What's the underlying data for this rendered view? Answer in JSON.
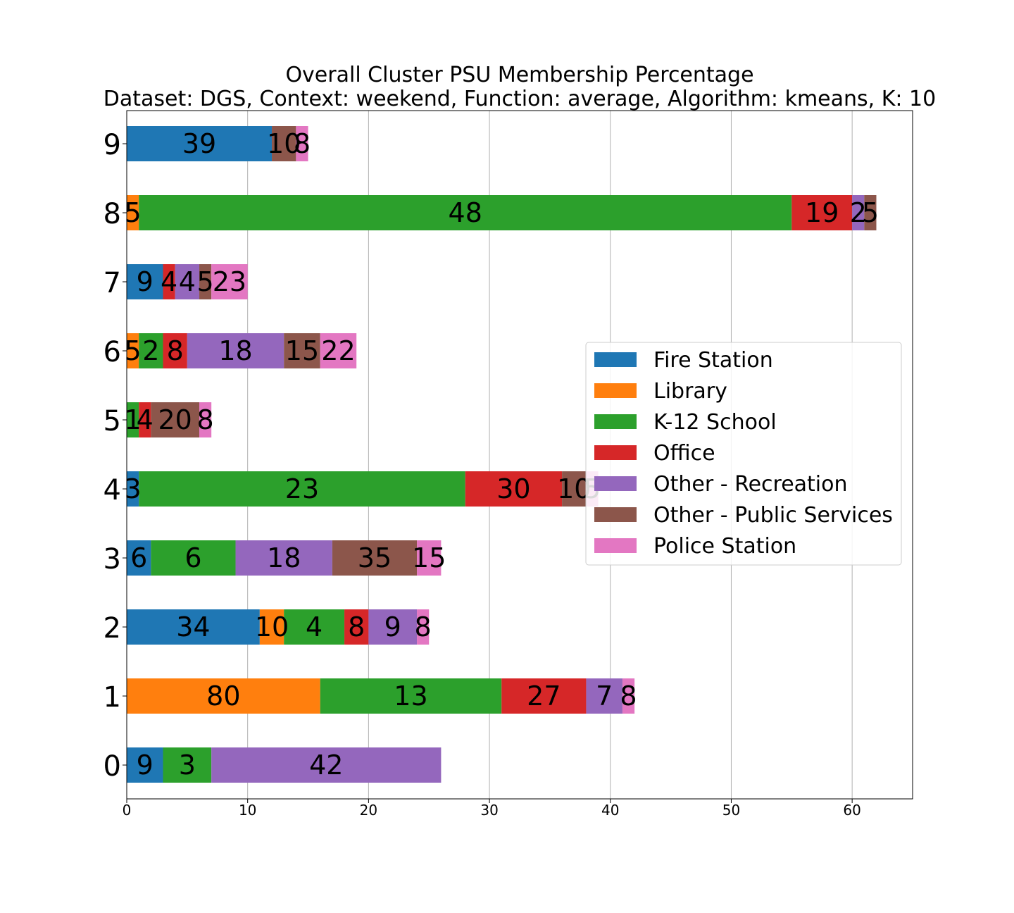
{
  "chart_data": {
    "type": "bar",
    "orientation": "horizontal",
    "stacked": true,
    "title": "Overall Cluster  PSU Membership Percentage",
    "subtitle": "Dataset: DGS, Context: weekend, Function: average, Algorithm: kmeans, K: 10",
    "xlabel": "",
    "ylabel": "",
    "xlim": [
      0,
      65
    ],
    "xticks": [
      "0",
      "10",
      "20",
      "30",
      "40",
      "50",
      "60"
    ],
    "xgrid": true,
    "legend_position": "right",
    "categories": [
      "0",
      "1",
      "2",
      "3",
      "4",
      "5",
      "6",
      "7",
      "8",
      "9"
    ],
    "series": [
      {
        "name": "Fire Station",
        "color": "#1f77b4",
        "values": [
          3,
          0,
          11,
          2,
          1,
          0,
          0,
          3,
          0,
          12
        ],
        "labels": [
          "9",
          "",
          "34",
          "6",
          "3",
          "",
          "",
          "9",
          "",
          "39"
        ]
      },
      {
        "name": "Library",
        "color": "#ff7f0e",
        "values": [
          0,
          16,
          2,
          0,
          0,
          0,
          1,
          0,
          1,
          0
        ],
        "labels": [
          "",
          "80",
          "10",
          "",
          "",
          "",
          "5",
          "",
          "5",
          ""
        ]
      },
      {
        "name": "K-12 School",
        "color": "#2ca02c",
        "values": [
          4,
          15,
          5,
          7,
          27,
          1,
          2,
          0,
          54,
          0
        ],
        "labels": [
          "3",
          "13",
          "4",
          "6",
          "23",
          "1",
          "2",
          "",
          "48",
          ""
        ]
      },
      {
        "name": "Office",
        "color": "#d62728",
        "values": [
          0,
          7,
          2,
          0,
          8,
          1,
          2,
          1,
          5,
          0
        ],
        "labels": [
          "",
          "27",
          "8",
          "",
          "30",
          "4",
          "8",
          "4",
          "19",
          ""
        ]
      },
      {
        "name": "Other - Recreation",
        "color": "#9467bd",
        "values": [
          19,
          3,
          4,
          8,
          0,
          0,
          8,
          2,
          1,
          0
        ],
        "labels": [
          "42",
          "7",
          "9",
          "18",
          "",
          "",
          "18",
          "4",
          "2",
          ""
        ]
      },
      {
        "name": "Other - Public Services",
        "color": "#8c564b",
        "values": [
          0,
          0,
          0,
          7,
          2,
          4,
          3,
          1,
          1,
          2
        ],
        "labels": [
          "",
          "",
          "",
          "35",
          "10",
          "20",
          "15",
          "5",
          "5",
          "10"
        ]
      },
      {
        "name": "Police Station",
        "color": "#e377c2",
        "values": [
          0,
          1,
          1,
          2,
          1,
          1,
          3,
          3,
          0,
          1
        ],
        "labels": [
          "",
          "8",
          "8",
          "15",
          "5",
          "8",
          "22",
          "23",
          "",
          "8"
        ]
      }
    ]
  }
}
